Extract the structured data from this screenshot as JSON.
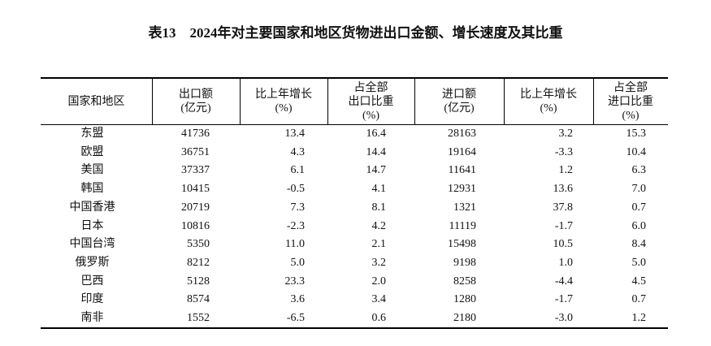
{
  "title": "表13　2024年对主要国家和地区货物进出口金额、增长速度及其比重",
  "table": {
    "header": [
      [
        "国家和地区"
      ],
      [
        "出口额",
        "(亿元)"
      ],
      [
        "比上年增长",
        "(%)"
      ],
      [
        "占全部",
        "出口比重",
        "(%)"
      ],
      [
        "进口额",
        "(亿元)"
      ],
      [
        "比上年增长",
        "(%)"
      ],
      [
        "占全部",
        "进口比重",
        "(%)"
      ]
    ],
    "rows": [
      [
        "东盟",
        "41736",
        "13.4",
        "16.4",
        "28163",
        "3.2",
        "15.3"
      ],
      [
        "欧盟",
        "36751",
        "4.3",
        "14.4",
        "19164",
        "-3.3",
        "10.4"
      ],
      [
        "美国",
        "37337",
        "6.1",
        "14.7",
        "11641",
        "1.2",
        "6.3"
      ],
      [
        "韩国",
        "10415",
        "-0.5",
        "4.1",
        "12931",
        "13.6",
        "7.0"
      ],
      [
        "中国香港",
        "20719",
        "7.3",
        "8.1",
        "1321",
        "37.8",
        "0.7"
      ],
      [
        "日本",
        "10816",
        "-2.3",
        "4.2",
        "11119",
        "-1.7",
        "6.0"
      ],
      [
        "中国台湾",
        "5350",
        "11.0",
        "2.1",
        "15498",
        "10.5",
        "8.4"
      ],
      [
        "俄罗斯",
        "8212",
        "5.0",
        "3.2",
        "9198",
        "1.0",
        "5.0"
      ],
      [
        "巴西",
        "5128",
        "23.3",
        "2.0",
        "8258",
        "-4.4",
        "4.5"
      ],
      [
        "印度",
        "8574",
        "3.6",
        "3.4",
        "1280",
        "-1.7",
        "0.7"
      ],
      [
        "南非",
        "1552",
        "-6.5",
        "0.6",
        "2180",
        "-3.0",
        "1.2"
      ]
    ]
  }
}
